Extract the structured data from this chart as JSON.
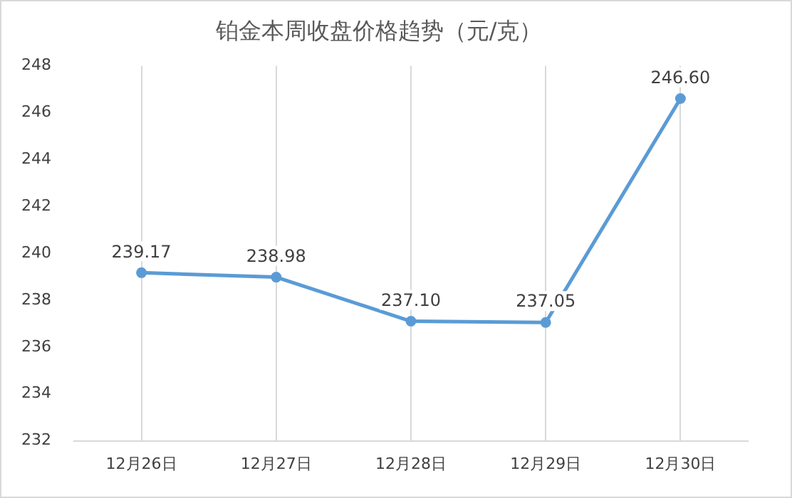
{
  "chart_data": {
    "type": "line",
    "title": "铂金本周收盘价格趋势（元/克）",
    "categories": [
      "12月26日",
      "12月27日",
      "12月28日",
      "12月29日",
      "12月30日"
    ],
    "series": [
      {
        "color": "#5b9bd5",
        "values": [
          239.17,
          238.98,
          237.1,
          237.05,
          246.6
        ],
        "value_labels": [
          "239.17",
          "238.98",
          "237.10",
          "237.05",
          "246.60"
        ]
      }
    ],
    "ylim": [
      232,
      248
    ],
    "yticks": [
      232,
      234,
      236,
      238,
      240,
      242,
      244,
      246,
      248
    ],
    "grid": "x",
    "legend": false,
    "marker": "circle",
    "line_style": "solid"
  }
}
